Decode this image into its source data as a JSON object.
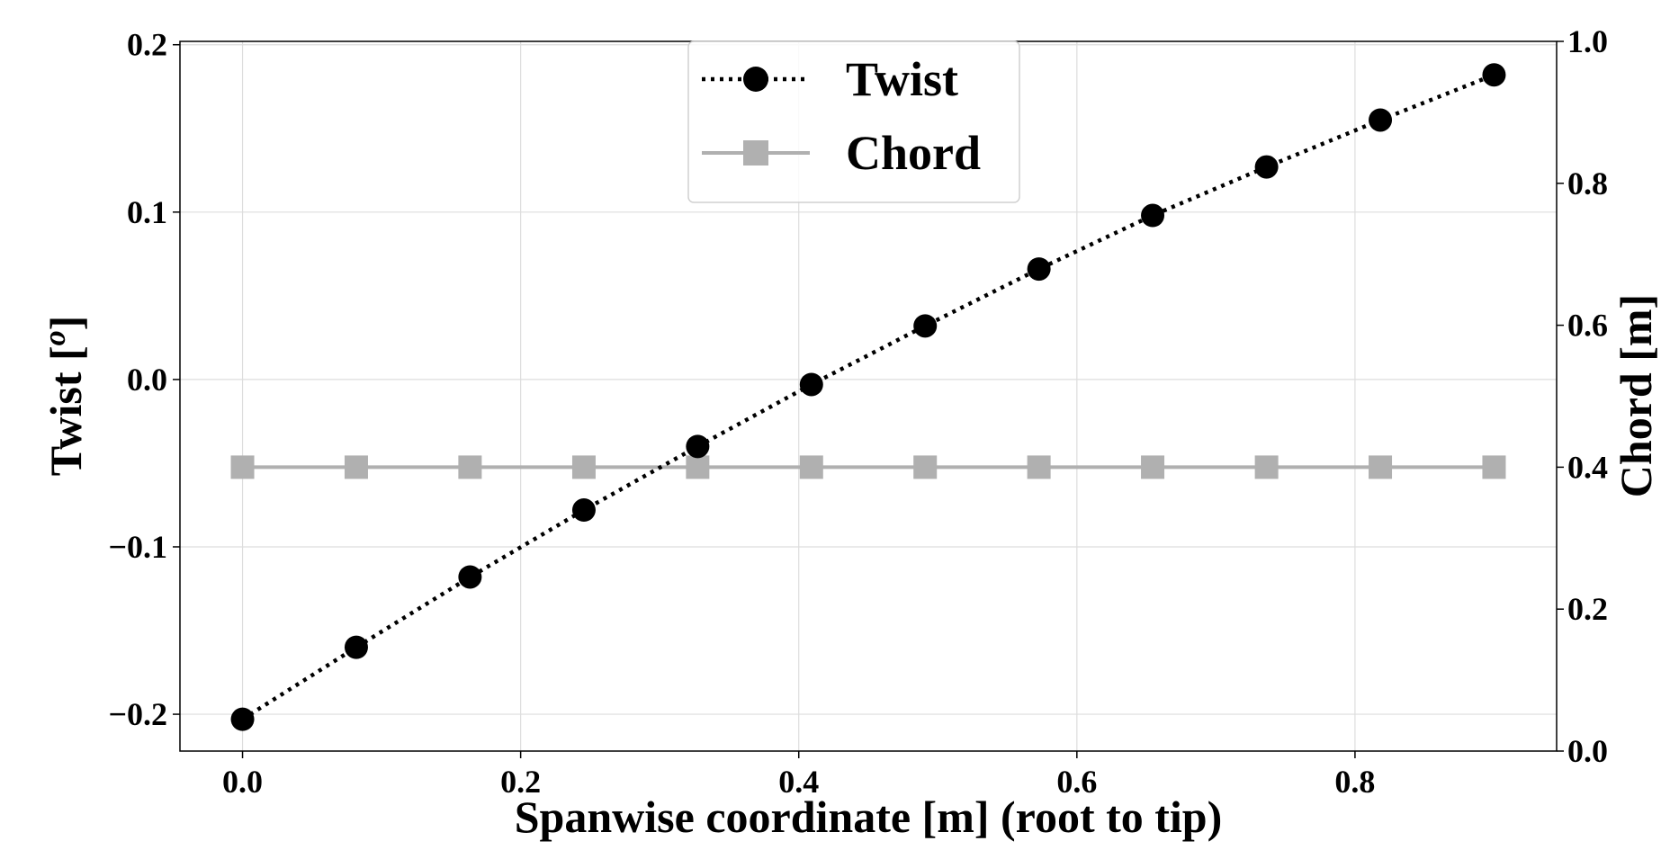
{
  "chart_data": {
    "type": "line",
    "xlabel": "Spanwise coordinate [m] (root to tip)",
    "ylabel_left_main": "Twist [",
    "ylabel_left_sup": "o",
    "ylabel_left_end": "]",
    "ylabel_right": "Chord [m]",
    "xlim": [
      -0.045,
      0.945
    ],
    "ylim_left": [
      -0.222,
      0.202
    ],
    "ylim_right": [
      0.0,
      1.0
    ],
    "x_ticks": [
      0.0,
      0.2,
      0.4,
      0.6,
      0.8
    ],
    "x_tick_labels": [
      "0.0",
      "0.2",
      "0.4",
      "0.6",
      "0.8"
    ],
    "y_left_ticks": [
      -0.2,
      -0.1,
      0.0,
      0.1,
      0.2
    ],
    "y_left_tick_labels": [
      "−0.2",
      "−0.1",
      "0.0",
      "0.1",
      "0.2"
    ],
    "y_right_ticks": [
      0.0,
      0.2,
      0.4,
      0.6,
      0.8,
      1.0
    ],
    "y_right_tick_labels": [
      "0.0",
      "0.2",
      "0.4",
      "0.6",
      "0.8",
      "1.0"
    ],
    "grid": true,
    "legend_position": "top-center",
    "x": [
      0.0,
      0.0818,
      0.1636,
      0.2455,
      0.3273,
      0.4091,
      0.4909,
      0.5727,
      0.6545,
      0.7364,
      0.8182,
      0.9
    ],
    "series": [
      {
        "name": "Twist",
        "axis": "left",
        "values": [
          -0.203,
          -0.16,
          -0.118,
          -0.078,
          -0.04,
          -0.003,
          0.032,
          0.066,
          0.098,
          0.127,
          0.155,
          0.182
        ],
        "color": "#000000",
        "line_style": "dotted",
        "marker": "circle"
      },
      {
        "name": "Chord",
        "axis": "right",
        "values": [
          0.4,
          0.4,
          0.4,
          0.4,
          0.4,
          0.4,
          0.4,
          0.4,
          0.4,
          0.4,
          0.4,
          0.4
        ],
        "color": "#b0b0b0",
        "line_style": "solid",
        "marker": "square"
      }
    ]
  }
}
